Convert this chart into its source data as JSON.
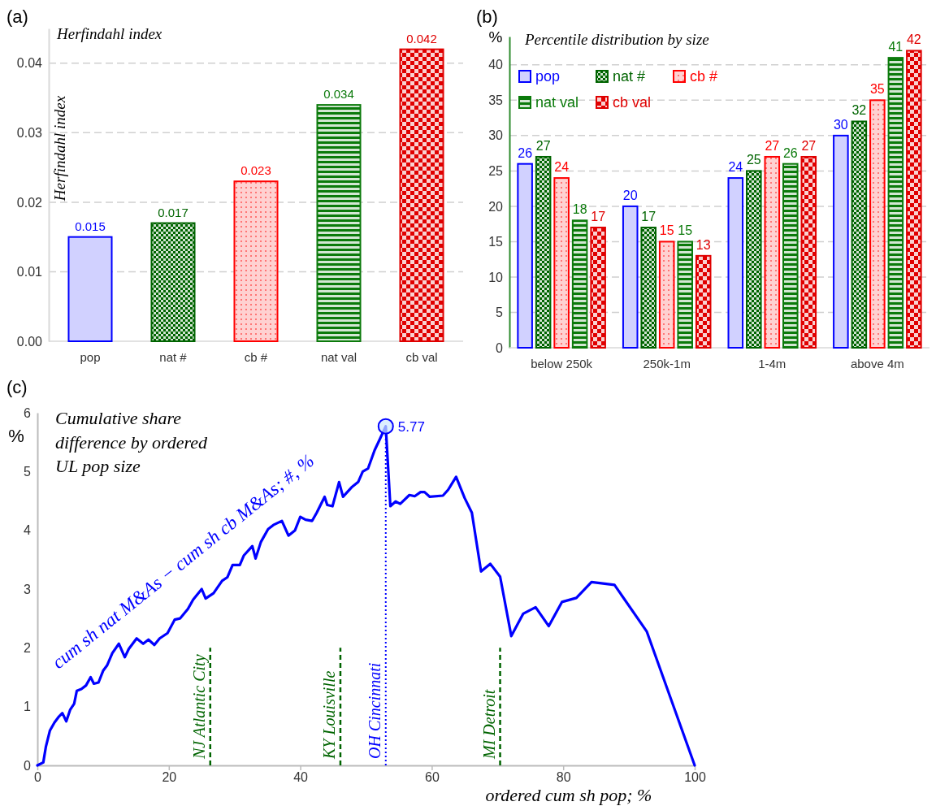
{
  "chart_data": [
    {
      "type": "bar",
      "title": "Herfindahl index",
      "ylabel": "Herfindahl index",
      "categories": [
        "pop",
        "nat #",
        "cb #",
        "nat val",
        "cb val"
      ],
      "values": [
        0.015,
        0.017,
        0.023,
        0.034,
        0.042
      ],
      "colors": [
        "#0000ff",
        "#006400",
        "#ff0000",
        "#0b7a0b",
        "#e00000"
      ],
      "data_labels": true,
      "ylim": [
        0,
        0.045
      ],
      "yticks": [
        {
          "value": 0,
          "label": "0.00"
        },
        {
          "value": 0.01,
          "label": "0.01"
        },
        {
          "value": 0.02,
          "label": "0.02"
        },
        {
          "value": 0.03,
          "label": "0.03"
        },
        {
          "value": 0.04,
          "label": "0.04"
        }
      ],
      "grid": "y",
      "annotations": [
        "(a)"
      ]
    },
    {
      "type": "bar",
      "title": "Percentile distribution by size",
      "ylabel": "%",
      "categories": [
        "below 250k",
        "250k-1m",
        "1-4m",
        "above 4m"
      ],
      "series": [
        {
          "name": "pop",
          "color": "#0000ff",
          "values": [
            26,
            20,
            24,
            30
          ]
        },
        {
          "name": "nat #",
          "color": "#006400",
          "values": [
            27,
            17,
            25,
            32
          ]
        },
        {
          "name": "cb #",
          "color": "#ff0000",
          "values": [
            24,
            15,
            27,
            35
          ]
        },
        {
          "name": "nat val",
          "color": "#0b7a0b",
          "values": [
            18,
            15,
            26,
            41
          ]
        },
        {
          "name": "cb val",
          "color": "#e00000",
          "values": [
            17,
            13,
            27,
            42
          ]
        }
      ],
      "data_labels": true,
      "legend": "top left",
      "ylim": [
        0,
        44
      ],
      "yticks": [
        0,
        5,
        10,
        15,
        20,
        25,
        30,
        35,
        40
      ],
      "grid": "y",
      "annotations": [
        "(b)"
      ]
    },
    {
      "type": "line",
      "title": "Cumulative share difference by ordered UL pop size",
      "xlabel": "ordered cum sh pop; %",
      "ylabel": "%",
      "color": "#0000ff",
      "x": [
        0,
        0.9,
        1.3,
        1.9,
        2.6,
        3.2,
        3.8,
        4.4,
        5.0,
        5.6,
        6.0,
        6.7,
        7.4,
        8.1,
        8.6,
        9.3,
        10.0,
        10.6,
        11.4,
        12.4,
        13.3,
        13.9,
        15.1,
        16.1,
        16.9,
        17.8,
        18.6,
        19.8,
        20.9,
        21.7,
        22.9,
        23.7,
        25.0,
        25.6,
        26.8,
        28.1,
        28.9,
        29.7,
        30.8,
        31.4,
        32.7,
        33.2,
        34.0,
        35.1,
        35.9,
        37.2,
        38.2,
        39.2,
        40.0,
        40.8,
        41.8,
        42.5,
        43.7,
        44.1,
        44.9,
        45.9,
        46.5,
        47.8,
        48.8,
        49.5,
        50.3,
        51.3,
        52.1,
        53.0,
        53.7,
        54.5,
        55.2,
        56.6,
        57.4,
        58.3,
        58.9,
        59.7,
        61.7,
        62.5,
        63.7,
        65.0,
        66.1,
        67.5,
        68.9,
        70.4,
        72.1,
        73.9,
        75.8,
        77.8,
        79.8,
        82.0,
        84.3,
        87.8,
        92.7,
        100
      ],
      "values": [
        0,
        0.05,
        0.32,
        0.59,
        0.73,
        0.82,
        0.89,
        0.75,
        0.95,
        1.05,
        1.27,
        1.3,
        1.36,
        1.5,
        1.39,
        1.41,
        1.61,
        1.7,
        1.91,
        2.07,
        1.84,
        1.98,
        2.16,
        2.07,
        2.14,
        2.05,
        2.16,
        2.25,
        2.48,
        2.5,
        2.66,
        2.82,
        3.0,
        2.84,
        2.93,
        3.14,
        3.2,
        3.41,
        3.41,
        3.57,
        3.73,
        3.52,
        3.8,
        4.02,
        4.09,
        4.16,
        3.91,
        4.0,
        4.23,
        4.18,
        4.16,
        4.3,
        4.57,
        4.43,
        4.41,
        4.82,
        4.57,
        4.73,
        4.82,
        5.0,
        5.05,
        5.36,
        5.55,
        5.77,
        4.41,
        4.49,
        4.45,
        4.6,
        4.58,
        4.65,
        4.65,
        4.57,
        4.59,
        4.69,
        4.91,
        4.55,
        4.3,
        3.3,
        3.43,
        3.21,
        2.2,
        2.58,
        2.69,
        2.37,
        2.78,
        2.85,
        3.12,
        3.07,
        2.28,
        0
      ],
      "xlim": [
        0,
        100
      ],
      "xticks": [
        0,
        20,
        40,
        60,
        80,
        100
      ],
      "ylim": [
        0,
        6
      ],
      "yticks": [
        0,
        1,
        2,
        3,
        4,
        5,
        6
      ],
      "ref_lines": [
        {
          "axis": "x",
          "value": 26.3,
          "label": "NJ Atlantic City",
          "color": "#006400",
          "line_style": "dashed"
        },
        {
          "axis": "x",
          "value": 46.1,
          "label": "KY Louisville",
          "color": "#006400",
          "line_style": "dashed"
        },
        {
          "axis": "x",
          "value": 53.0,
          "label": "OH Cincinnati",
          "color": "#0000ff",
          "line_style": "dotted"
        },
        {
          "axis": "x",
          "value": 70.4,
          "label": "MI Detroit",
          "color": "#006400",
          "line_style": "dashed"
        }
      ],
      "annotations": [
        "(c)",
        "cum sh nat M&As  − cum sh cb M&As; #, %",
        {
          "text": "5.77",
          "x": 53.0,
          "y": 5.77
        }
      ]
    }
  ]
}
